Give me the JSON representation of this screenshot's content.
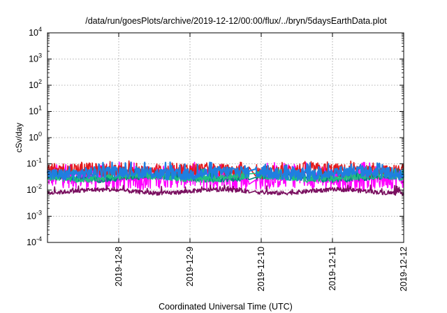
{
  "chart_data": {
    "type": "line",
    "title": "/data/run/goesPlots/archive/2019-12-12/00:00/flux/../bryn/5daysEarthData.plot",
    "xlabel": "Coordinated Universal Time (UTC)",
    "ylabel": "cSv/day",
    "yscale": "log",
    "ylim": [
      0.0001,
      10000
    ],
    "y_ticks": [
      {
        "value": 0.0001,
        "base": "10",
        "exp": "-4"
      },
      {
        "value": 0.001,
        "base": "10",
        "exp": "-3"
      },
      {
        "value": 0.01,
        "base": "10",
        "exp": "-2"
      },
      {
        "value": 0.1,
        "base": "10",
        "exp": "-1"
      },
      {
        "value": 1,
        "base": "10",
        "exp": "0"
      },
      {
        "value": 10,
        "base": "10",
        "exp": "1"
      },
      {
        "value": 100,
        "base": "10",
        "exp": "2"
      },
      {
        "value": 1000,
        "base": "10",
        "exp": "3"
      },
      {
        "value": 10000,
        "base": "10",
        "exp": "4"
      }
    ],
    "xlim": [
      "2019-12-07 00:00",
      "2019-12-12 00:00"
    ],
    "x_ticks": [
      "2019-12-8",
      "2019-12-9",
      "2019-12-10",
      "2019-12-11",
      "2019-12-12"
    ],
    "x_tick_dates": [
      "2019-12-08",
      "2019-12-09",
      "2019-12-10",
      "2019-12-11",
      "2019-12-12"
    ],
    "grid": true,
    "gap": [
      "2019-12-09 20:00",
      "2019-12-09 22:00"
    ],
    "series": [
      {
        "color": "#e41a1c",
        "level": 0.055,
        "noise": 0.25,
        "spike": 0.1
      },
      {
        "color": "#ff00ff",
        "level": 0.03,
        "noise": 0.45,
        "spike": 0.09
      },
      {
        "color": "#008080",
        "level": 0.03,
        "noise": 0.12,
        "spike": 0.05
      },
      {
        "color": "#20c080",
        "level": 0.03,
        "noise": 0.12,
        "spike": 0.05
      },
      {
        "color": "#1f7fe0",
        "level": 0.045,
        "noise": 0.22,
        "spike": 0.09
      },
      {
        "color": "#7a1060",
        "level": 0.009,
        "noise": 0.08,
        "spike": 0.012
      }
    ]
  }
}
